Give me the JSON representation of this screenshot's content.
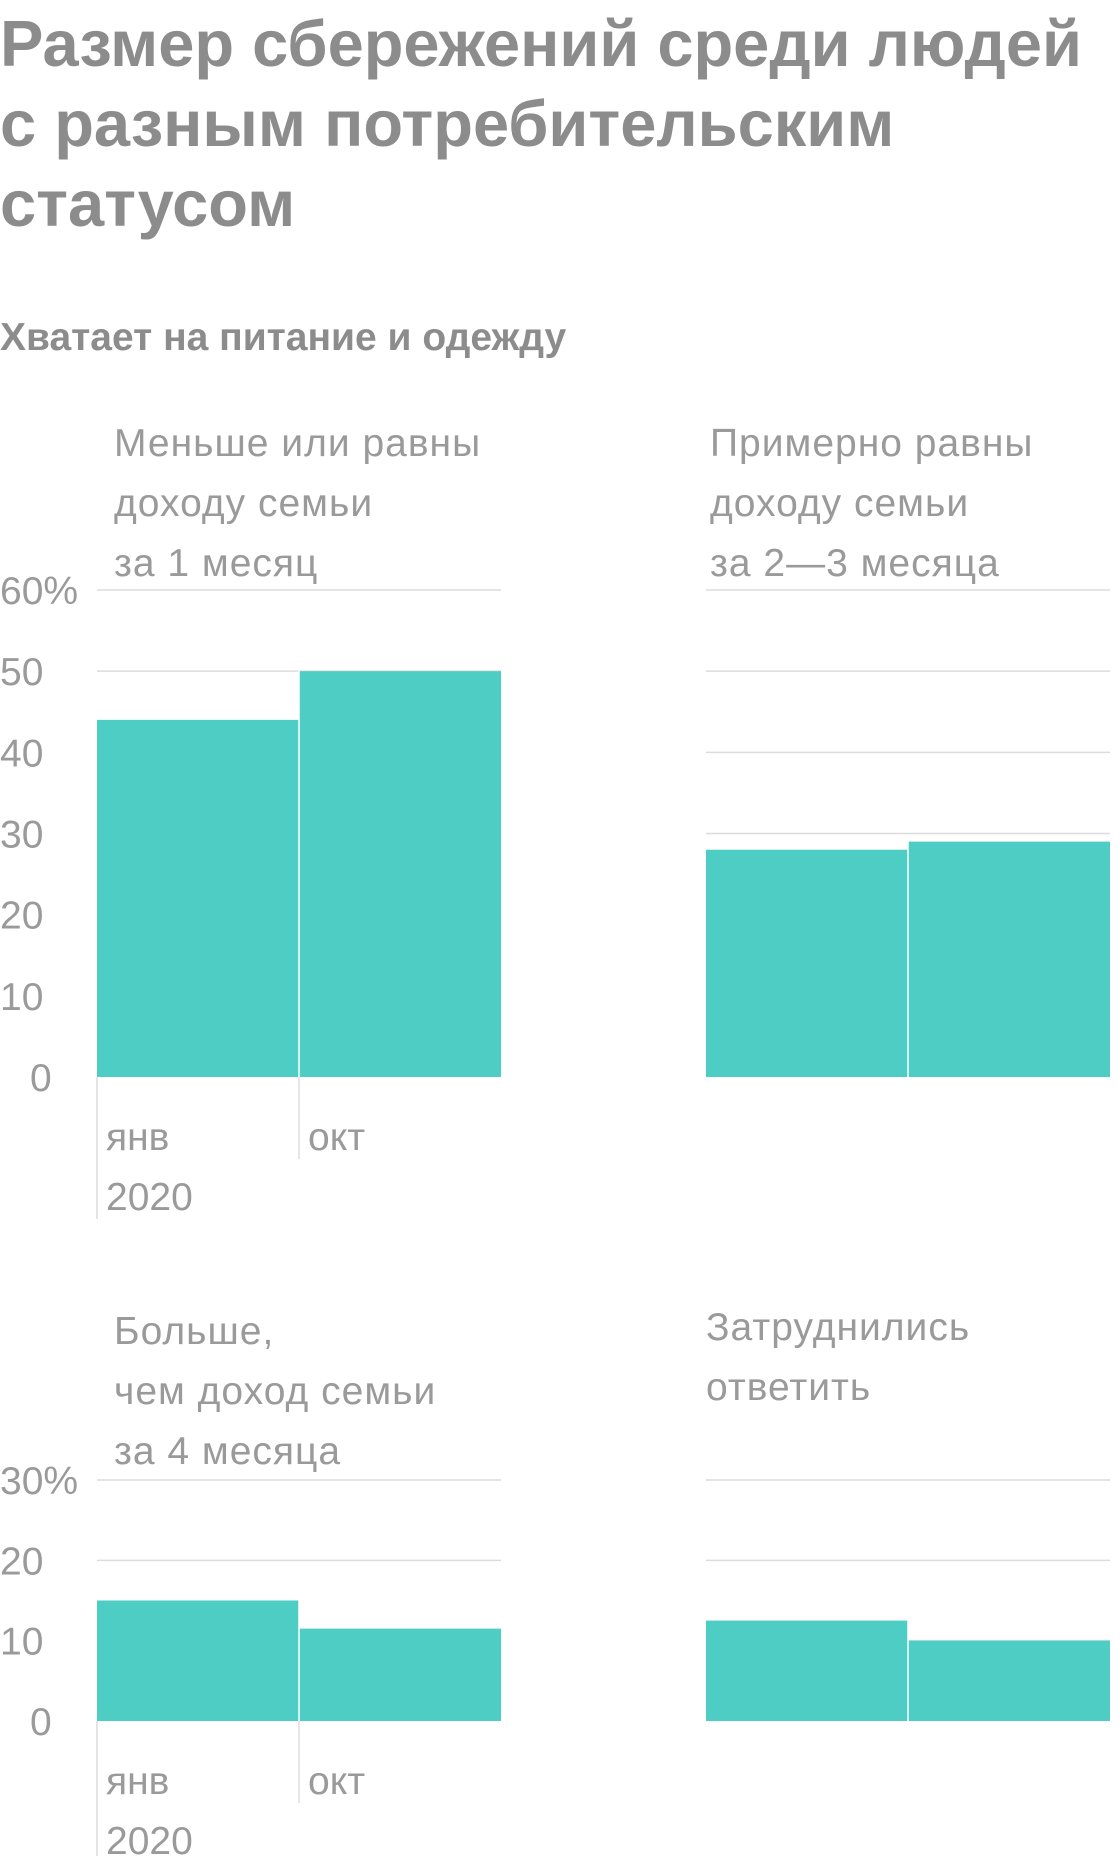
{
  "title": "Размер сбережений среди людей с разным потребительским статусом",
  "subtitle": "Хватает на питание и одежду",
  "chart_data": [
    {
      "type": "bar",
      "title_lines": [
        "Меньше или равны",
        "доходу семьи",
        "за 1 месяц"
      ],
      "categories": [
        "янв 2020",
        "окт"
      ],
      "values": [
        44,
        50
      ],
      "ylim": [
        0,
        60
      ],
      "y_ticks": [
        "60%",
        "50",
        "40",
        "30",
        "20",
        "10",
        "0"
      ],
      "x_tick_labels": [
        [
          "янв",
          "2020"
        ],
        [
          "окт"
        ]
      ],
      "grid": true
    },
    {
      "type": "bar",
      "title_lines": [
        "Примерно равны",
        "доходу семьи",
        "за 2—3 месяца"
      ],
      "categories": [
        "янв 2020",
        "окт"
      ],
      "values": [
        28,
        29
      ],
      "ylim": [
        0,
        60
      ],
      "grid": true
    },
    {
      "type": "bar",
      "title_lines": [
        "Больше,",
        "чем доход семьи",
        "за 4 месяца"
      ],
      "categories": [
        "янв 2020",
        "окт"
      ],
      "values": [
        15,
        11.5
      ],
      "ylim": [
        0,
        30
      ],
      "y_ticks": [
        "30%",
        "20",
        "10",
        "0"
      ],
      "x_tick_labels": [
        [
          "янв",
          "2020"
        ],
        [
          "окт"
        ]
      ],
      "grid": true
    },
    {
      "type": "bar",
      "title_lines": [
        "Затруднились",
        "ответить"
      ],
      "categories": [
        "янв 2020",
        "окт"
      ],
      "values": [
        12.5,
        10
      ],
      "ylim": [
        0,
        30
      ],
      "grid": true
    }
  ],
  "colors": {
    "bar": "#4ecdc4",
    "grid": "#dcdcdc",
    "text": "#9a9a9a",
    "title": "#8c8c8c"
  }
}
